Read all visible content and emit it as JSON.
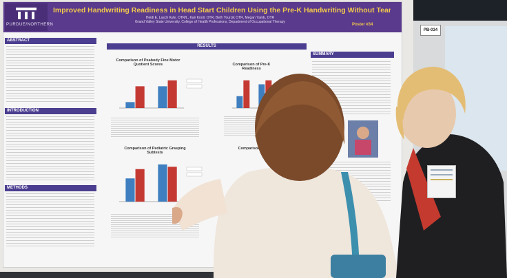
{
  "poster": {
    "logo_text": "PURDUE/NORTHERN",
    "title": "Improved Handwriting Readiness in Head Start Children Using the Pre-K Handwriting Without Tears Program",
    "authors_line1": "Heidi E. Lasch Kyle, OTR/L, Kari Knoll, OTR, Beth Yourcik OTR, Megan Yamb, OTR",
    "authors_line2": "Grand Valley State University, College of Health Professions, Department of Occupational Therapy",
    "poster_number": "Poster #34",
    "sections": {
      "abstract": "ABSTRACT",
      "introduction": "INTRODUCTION",
      "methods": "METHODS",
      "results": "RESULTS",
      "summary": "SUMMARY"
    },
    "charts": [
      {
        "title": "Comparison of Peabody Fine Motor Quotient Scores"
      },
      {
        "title": "Comparison of Pre-K Readiness"
      },
      {
        "title": "Comparison of Pediatric Grasping Subtests"
      },
      {
        "title": "Comparison of Scores"
      }
    ]
  },
  "chart_data": [
    {
      "type": "bar",
      "title": "Comparison of Peabody Fine Motor Quotient Scores",
      "categories": [
        "Experimental",
        "Control"
      ],
      "series": [
        {
          "values": [
            3,
            11
          ]
        },
        {
          "values": [
            11,
            14
          ]
        }
      ],
      "colors": [
        "#3f7fc0",
        "#c43a33"
      ]
    },
    {
      "type": "bar",
      "title": "Comparison of Pre-K Readiness",
      "categories": [
        "Experimental",
        "Control"
      ],
      "series": [
        {
          "values": [
            6,
            12
          ]
        },
        {
          "values": [
            14,
            14
          ]
        }
      ],
      "colors": [
        "#3f7fc0",
        "#c43a33"
      ]
    },
    {
      "type": "bar",
      "title": "Comparison of Pediatric Grasping Subtests",
      "categories": [
        "Experimental",
        "Control"
      ],
      "series": [
        {
          "values": [
            10,
            16
          ]
        },
        {
          "values": [
            14,
            15
          ]
        }
      ],
      "colors": [
        "#3f7fc0",
        "#c43a33"
      ]
    }
  ],
  "side": {
    "tag": "PB-034"
  }
}
